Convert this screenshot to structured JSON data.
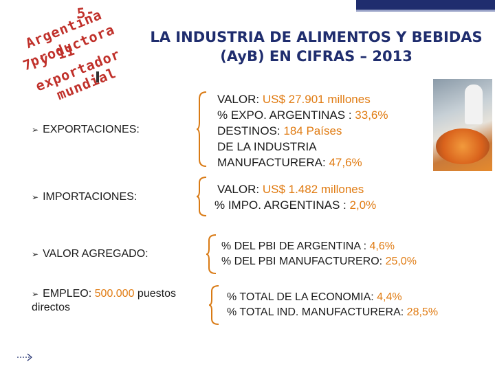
{
  "header": {
    "arc_lines": [
      "5-",
      "Argentina",
      "productora",
      "7 y 11",
      "exportador",
      "mundial"
    ],
    "title_line1": "LA INDUSTRIA DE ALIMENTOS Y BEBIDAS",
    "title_line2": "(AyB) EN CIFRAS – 2013"
  },
  "rows": [
    {
      "label": "EXPORTACIONES:",
      "lines": [
        {
          "pre": "VALOR:  ",
          "hl": "US$ 27.901  millones",
          "post": ""
        },
        {
          "pre": "% EXPO. ARGENTINAS : ",
          "hl": "33,6%",
          "post": ""
        },
        {
          "pre": "DESTINOS: ",
          "hl": "184 Países",
          "post": ""
        },
        {
          "pre": "DE LA INDUSTRIA",
          "hl": "",
          "post": ""
        },
        {
          "pre": "MANUFACTURERA: ",
          "hl": "47,6%",
          "post": ""
        }
      ]
    },
    {
      "label": "IMPORTACIONES:",
      "lines": [
        {
          "pre": "VALOR: ",
          "hl": "US$ 1.482 millones",
          "post": ""
        },
        {
          "pre": "% IMPO. ARGENTINAS : ",
          "hl": "2,0%",
          "post": ""
        }
      ]
    },
    {
      "label": "VALOR AGREGADO:",
      "lines": [
        {
          "pre": "% DEL PBI DE ARGENTINA : ",
          "hl": "4,6%",
          "post": ""
        },
        {
          "pre": "% DEL PBI MANUFACTURERO: ",
          "hl": "25,0%",
          "post": ""
        }
      ]
    },
    {
      "label_pre": "EMPLEO: ",
      "label_hl": "500.000",
      "label_post": " puestos",
      "label_line2": "directos",
      "lines": [
        {
          "pre": "% TOTAL DE LA ECONOMIA: ",
          "hl": "4,4%",
          "post": ""
        },
        {
          "pre": "% TOTAL IND. MANUFACTURERA: ",
          "hl": "28,5%",
          "post": ""
        }
      ]
    }
  ],
  "colors": {
    "accent": "#e07b12",
    "brace": "#d97a14",
    "title": "#1f2d6e",
    "arc_text": "#c0302a"
  },
  "icons": {
    "bullet": "arrow-bullet-icon",
    "footer": "next-arrow-icon"
  }
}
